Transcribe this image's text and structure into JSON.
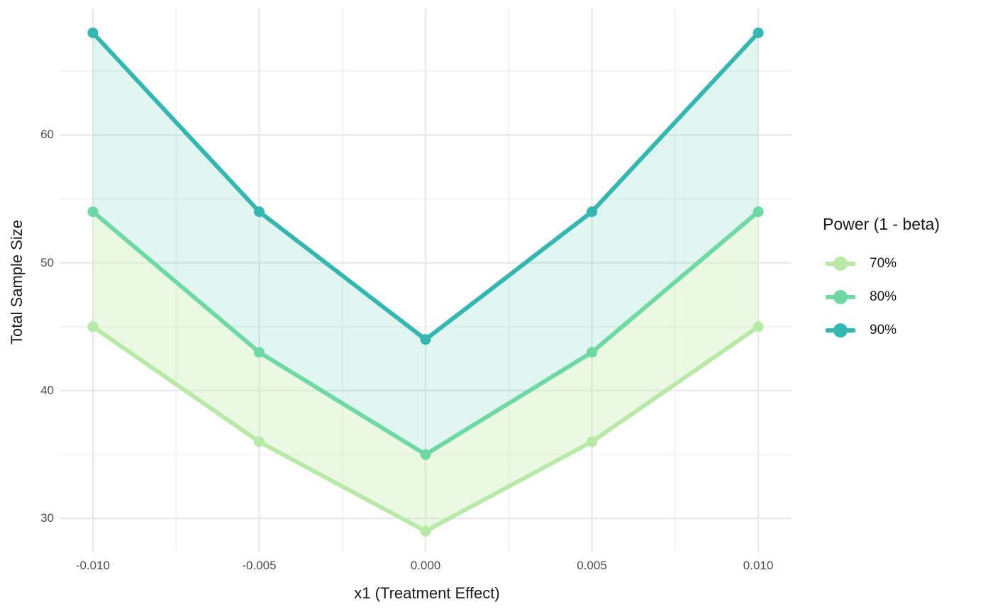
{
  "chart_data": {
    "type": "line",
    "title": "",
    "xlabel": "x1 (Treatment Effect)",
    "ylabel": "Total Sample Size",
    "x": [
      -0.01,
      -0.005,
      0,
      0.005,
      0.01
    ],
    "series": [
      {
        "name": "70%",
        "color": "#b9e9a6",
        "values": [
          45,
          36,
          29,
          36,
          45
        ]
      },
      {
        "name": "80%",
        "color": "#6ed9a5",
        "values": [
          54,
          43,
          35,
          43,
          54
        ]
      },
      {
        "name": "90%",
        "color": "#35b7b1",
        "values": [
          68,
          54,
          44,
          54,
          68
        ]
      }
    ],
    "bands": [
      {
        "upper_series": "80%",
        "lower_series": "70%",
        "fill": "rgba(185,233,166,0.30)"
      },
      {
        "upper_series": "90%",
        "lower_series": "80%",
        "fill": "rgba(76,196,168,0.16)"
      }
    ],
    "legend": {
      "title": "Power (1 - beta)",
      "position": "right",
      "entries": [
        "70%",
        "80%",
        "90%"
      ]
    },
    "axes": {
      "x_tick_labels": [
        "-0.010",
        "-0.005",
        "0.000",
        "0.005",
        "0.010"
      ],
      "x_tick_values": [
        -0.01,
        -0.005,
        0,
        0.005,
        0.01
      ],
      "x_minor_values": [
        -0.0075,
        -0.0025,
        0.0025,
        0.0075
      ],
      "y_tick_labels": [
        "30",
        "40",
        "50",
        "60"
      ],
      "y_tick_values": [
        30,
        40,
        50,
        60
      ],
      "y_minor_values": [
        35,
        45,
        55,
        65
      ],
      "xlim": [
        -0.011,
        0.011
      ],
      "ylim": [
        27.4,
        69.9
      ],
      "grid": "major+minor"
    },
    "style": {
      "background": "#ffffff",
      "grid_major_color": "#e8e8e8",
      "grid_minor_color": "#f1f1f1",
      "tick_label_color": "#4d4d4d",
      "axis_title_color": "#1a1a1a",
      "line_width": 6,
      "point_radius": 7.5
    }
  }
}
